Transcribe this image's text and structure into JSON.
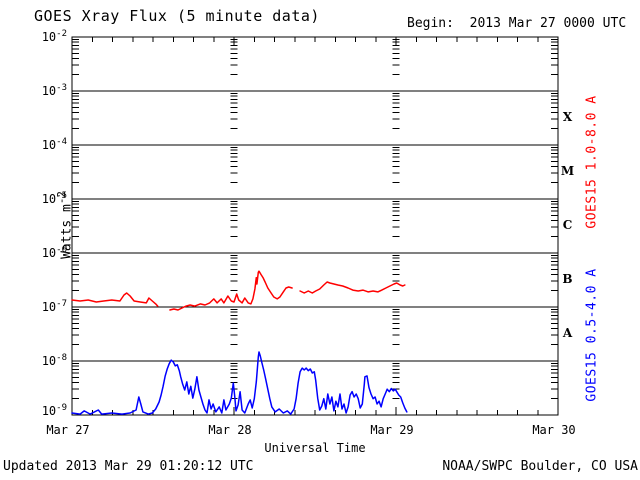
{
  "header": {
    "title": "GOES Xray Flux (5 minute data)",
    "begin_label": "Begin:  2013 Mar 27 0000 UTC"
  },
  "footer": {
    "updated_text": "Updated 2013 Mar 29 01:20:12 UTC",
    "source_text": "NOAA/SWPC Boulder, CO USA"
  },
  "chart_data": {
    "type": "line",
    "title": "GOES Xray Flux (5 minute data)",
    "xlabel": "Universal Time",
    "ylabel": "Watts m⁻²",
    "ylabel_base": "Watts m",
    "ylabel_exp": "-2",
    "x_axis": {
      "range_hours": [
        0,
        72
      ],
      "start_utc_label": "2013 Mar 27 0000 UTC",
      "tick_interval_hours": 3,
      "day_tick_labels": [
        "Mar 27",
        "Mar 28",
        "Mar 29",
        "Mar 30"
      ],
      "day_boundary_hours": [
        24,
        48
      ]
    },
    "y_axis": {
      "scale": "log",
      "ylim": [
        1e-09,
        0.01
      ],
      "tick_exponents": [
        -2,
        -3,
        -4,
        -5,
        -6,
        -7,
        -8,
        -9
      ],
      "tick_labels": [
        "10⁻²",
        "10⁻³",
        "10⁻⁴",
        "10⁻⁵",
        "10⁻⁶",
        "10⁻⁷",
        "10⁻⁸",
        "10⁻⁹"
      ]
    },
    "grid": {
      "horizontal_decade_lines": true,
      "vertical_day_minor_tick_columns": true
    },
    "flare_class_labels": [
      {
        "label": "X",
        "flux_mid": 0.000316
      },
      {
        "label": "M",
        "flux_mid": 3.16e-05
      },
      {
        "label": "C",
        "flux_mid": 3.16e-06
      },
      {
        "label": "B",
        "flux_mid": 3.16e-07
      },
      {
        "label": "A",
        "flux_mid": 3.16e-08
      }
    ],
    "series": [
      {
        "name": "GOES15 1.0-8.0 A",
        "color": "#ff0000",
        "units": "W m^-2",
        "segments": [
          [
            [
              0.0,
              1.35e-07
            ],
            [
              1.2,
              1.29e-07
            ],
            [
              2.4,
              1.35e-07
            ],
            [
              3.6,
              1.24e-07
            ],
            [
              4.7,
              1.29e-07
            ],
            [
              5.9,
              1.35e-07
            ],
            [
              7.1,
              1.29e-07
            ],
            [
              7.7,
              1.67e-07
            ],
            [
              8.1,
              1.82e-07
            ],
            [
              8.6,
              1.6e-07
            ],
            [
              9.2,
              1.29e-07
            ],
            [
              10.1,
              1.24e-07
            ],
            [
              11.0,
              1.19e-07
            ],
            [
              11.4,
              1.47e-07
            ],
            [
              11.9,
              1.29e-07
            ],
            [
              12.4,
              1.14e-07
            ],
            [
              12.7,
              1.04e-07
            ]
          ],
          [
            [
              14.5,
              8.8e-08
            ],
            [
              15.1,
              9.2e-08
            ],
            [
              15.7,
              8.8e-08
            ],
            [
              16.3,
              9.6e-08
            ],
            [
              16.9,
              1.04e-07
            ],
            [
              17.5,
              1.09e-07
            ],
            [
              18.2,
              1.04e-07
            ],
            [
              19.0,
              1.14e-07
            ],
            [
              19.7,
              1.09e-07
            ],
            [
              20.4,
              1.19e-07
            ],
            [
              21.0,
              1.41e-07
            ],
            [
              21.5,
              1.19e-07
            ],
            [
              22.1,
              1.41e-07
            ],
            [
              22.5,
              1.19e-07
            ],
            [
              23.1,
              1.6e-07
            ],
            [
              23.6,
              1.29e-07
            ],
            [
              24.0,
              1.24e-07
            ],
            [
              24.4,
              1.74e-07
            ],
            [
              24.7,
              1.35e-07
            ],
            [
              25.2,
              1.19e-07
            ],
            [
              25.6,
              1.47e-07
            ],
            [
              26.1,
              1.19e-07
            ],
            [
              26.5,
              1.14e-07
            ],
            [
              26.8,
              1.41e-07
            ],
            [
              27.1,
              2.15e-07
            ],
            [
              27.3,
              3.5e-07
            ],
            [
              27.4,
              2.67e-07
            ],
            [
              27.6,
              4.4e-07
            ],
            [
              27.7,
              4.6e-07
            ],
            [
              28.0,
              4e-07
            ],
            [
              28.3,
              3.5e-07
            ],
            [
              28.6,
              2.9e-07
            ],
            [
              29.0,
              2.25e-07
            ],
            [
              29.5,
              1.82e-07
            ],
            [
              29.9,
              1.53e-07
            ],
            [
              30.4,
              1.41e-07
            ],
            [
              30.8,
              1.53e-07
            ],
            [
              31.3,
              1.9e-07
            ],
            [
              31.7,
              2.25e-07
            ],
            [
              32.1,
              2.35e-07
            ],
            [
              32.6,
              2.25e-07
            ]
          ],
          [
            [
              33.8,
              1.98e-07
            ],
            [
              34.4,
              1.82e-07
            ],
            [
              35.0,
              1.98e-07
            ],
            [
              35.6,
              1.82e-07
            ],
            [
              36.1,
              1.98e-07
            ],
            [
              36.7,
              2.15e-07
            ],
            [
              37.3,
              2.55e-07
            ],
            [
              37.8,
              2.9e-07
            ],
            [
              38.2,
              2.78e-07
            ],
            [
              38.8,
              2.67e-07
            ],
            [
              39.4,
              2.55e-07
            ],
            [
              40.1,
              2.45e-07
            ],
            [
              40.9,
              2.25e-07
            ],
            [
              41.6,
              2.06e-07
            ],
            [
              42.4,
              1.98e-07
            ],
            [
              43.1,
              2.06e-07
            ],
            [
              43.9,
              1.9e-07
            ],
            [
              44.6,
              1.98e-07
            ],
            [
              45.3,
              1.9e-07
            ],
            [
              45.9,
              2.06e-07
            ],
            [
              46.5,
              2.25e-07
            ],
            [
              47.1,
              2.45e-07
            ],
            [
              47.7,
              2.67e-07
            ],
            [
              48.1,
              2.78e-07
            ],
            [
              48.6,
              2.55e-07
            ],
            [
              49.0,
              2.45e-07
            ],
            [
              49.3,
              2.55e-07
            ]
          ]
        ]
      },
      {
        "name": "GOES15 0.5-4.0 A",
        "color": "#0000ff",
        "units": "W m^-2",
        "segments": [
          [
            [
              0.0,
              1.09e-09
            ],
            [
              1.2,
              1.04e-09
            ],
            [
              1.8,
              1.19e-09
            ],
            [
              2.7,
              1.04e-09
            ],
            [
              3.9,
              1.24e-09
            ],
            [
              4.4,
              1.04e-09
            ],
            [
              5.9,
              1.09e-09
            ],
            [
              7.4,
              1.04e-09
            ],
            [
              8.6,
              1.09e-09
            ],
            [
              9.5,
              1.24e-09
            ],
            [
              9.9,
              2.15e-09
            ],
            [
              10.2,
              1.6e-09
            ],
            [
              10.5,
              1.14e-09
            ],
            [
              11.3,
              1.04e-09
            ],
            [
              11.9,
              1.09e-09
            ],
            [
              12.4,
              1.29e-09
            ],
            [
              12.9,
              1.74e-09
            ],
            [
              13.2,
              2.35e-09
            ],
            [
              13.5,
              3.4e-09
            ],
            [
              13.8,
              5.3e-09
            ],
            [
              14.1,
              7.1e-09
            ],
            [
              14.4,
              8.9e-09
            ],
            [
              14.7,
              1.04e-08
            ],
            [
              15.0,
              9.6e-09
            ],
            [
              15.3,
              8.1e-09
            ],
            [
              15.6,
              8.5e-09
            ],
            [
              15.9,
              6.6e-09
            ],
            [
              16.1,
              5.1e-09
            ],
            [
              16.4,
              3.7e-09
            ],
            [
              16.7,
              2.9e-09
            ],
            [
              17.0,
              4.1e-09
            ],
            [
              17.3,
              2.45e-09
            ],
            [
              17.6,
              3.4e-09
            ],
            [
              17.9,
              2.06e-09
            ],
            [
              18.2,
              3e-09
            ],
            [
              18.5,
              5.1e-09
            ],
            [
              18.8,
              2.9e-09
            ],
            [
              19.1,
              2.15e-09
            ],
            [
              19.4,
              1.6e-09
            ],
            [
              19.7,
              1.24e-09
            ],
            [
              20.0,
              1.09e-09
            ],
            [
              20.3,
              1.9e-09
            ],
            [
              20.6,
              1.29e-09
            ],
            [
              20.9,
              1.6e-09
            ],
            [
              21.3,
              1.14e-09
            ],
            [
              21.8,
              1.41e-09
            ],
            [
              22.2,
              1.09e-09
            ],
            [
              22.5,
              1.9e-09
            ],
            [
              22.8,
              1.24e-09
            ],
            [
              23.3,
              1.6e-09
            ],
            [
              23.6,
              2.06e-09
            ],
            [
              23.9,
              3.9e-09
            ],
            [
              24.1,
              2.25e-09
            ],
            [
              24.3,
              1.19e-09
            ],
            [
              24.6,
              1.53e-09
            ],
            [
              24.9,
              2.7e-09
            ],
            [
              25.2,
              1.24e-09
            ],
            [
              25.6,
              1.09e-09
            ],
            [
              26.1,
              1.6e-09
            ],
            [
              26.4,
              1.9e-09
            ],
            [
              26.7,
              1.35e-09
            ],
            [
              27.0,
              2e-09
            ],
            [
              27.3,
              4.1e-09
            ],
            [
              27.6,
              1.19e-08
            ],
            [
              27.7,
              1.47e-08
            ],
            [
              27.9,
              1.24e-08
            ],
            [
              28.1,
              9.6e-09
            ],
            [
              28.4,
              6.8e-09
            ],
            [
              28.7,
              4.6e-09
            ],
            [
              29.0,
              3e-09
            ],
            [
              29.3,
              2e-09
            ],
            [
              29.6,
              1.41e-09
            ],
            [
              30.1,
              1.14e-09
            ],
            [
              30.7,
              1.29e-09
            ],
            [
              31.3,
              1.09e-09
            ],
            [
              31.9,
              1.19e-09
            ],
            [
              32.4,
              1.04e-09
            ],
            [
              32.9,
              1.29e-09
            ],
            [
              33.2,
              2e-09
            ],
            [
              33.5,
              3.9e-09
            ],
            [
              33.8,
              6.3e-09
            ],
            [
              34.1,
              7.4e-09
            ],
            [
              34.4,
              6.8e-09
            ],
            [
              34.7,
              7.4e-09
            ],
            [
              35.0,
              6.6e-09
            ],
            [
              35.3,
              7.1e-09
            ],
            [
              35.6,
              6e-09
            ],
            [
              35.9,
              6.3e-09
            ],
            [
              36.1,
              4.4e-09
            ],
            [
              36.4,
              2.06e-09
            ],
            [
              36.7,
              1.24e-09
            ],
            [
              37.0,
              1.47e-09
            ],
            [
              37.3,
              2e-09
            ],
            [
              37.6,
              1.29e-09
            ],
            [
              37.9,
              2.45e-09
            ],
            [
              38.2,
              1.6e-09
            ],
            [
              38.5,
              2.15e-09
            ],
            [
              38.8,
              1.19e-09
            ],
            [
              39.1,
              1.8e-09
            ],
            [
              39.4,
              1.41e-09
            ],
            [
              39.7,
              2.45e-09
            ],
            [
              40.0,
              1.29e-09
            ],
            [
              40.3,
              1.6e-09
            ],
            [
              40.6,
              1.09e-09
            ],
            [
              40.9,
              1.41e-09
            ],
            [
              41.2,
              2.35e-09
            ],
            [
              41.5,
              2.7e-09
            ],
            [
              41.8,
              2.15e-09
            ],
            [
              42.1,
              2.45e-09
            ],
            [
              42.4,
              2e-09
            ],
            [
              42.7,
              1.35e-09
            ],
            [
              43.0,
              1.6e-09
            ],
            [
              43.3,
              3.7e-09
            ],
            [
              43.4,
              5.1e-09
            ],
            [
              43.7,
              5.3e-09
            ],
            [
              44.0,
              3.2e-09
            ],
            [
              44.3,
              2.45e-09
            ],
            [
              44.6,
              2e-09
            ],
            [
              44.9,
              2.15e-09
            ],
            [
              45.2,
              1.6e-09
            ],
            [
              45.5,
              1.8e-09
            ],
            [
              45.8,
              1.41e-09
            ],
            [
              46.1,
              2e-09
            ],
            [
              46.4,
              2.45e-09
            ],
            [
              46.7,
              3e-09
            ],
            [
              47.0,
              2.7e-09
            ],
            [
              47.3,
              3.1e-09
            ],
            [
              47.6,
              2.8e-09
            ],
            [
              47.9,
              3e-09
            ],
            [
              48.1,
              2.7e-09
            ],
            [
              48.4,
              2.35e-09
            ],
            [
              48.7,
              2.15e-09
            ],
            [
              49.0,
              1.67e-09
            ],
            [
              49.3,
              1.35e-09
            ],
            [
              49.6,
              1.14e-09
            ]
          ]
        ]
      }
    ]
  }
}
